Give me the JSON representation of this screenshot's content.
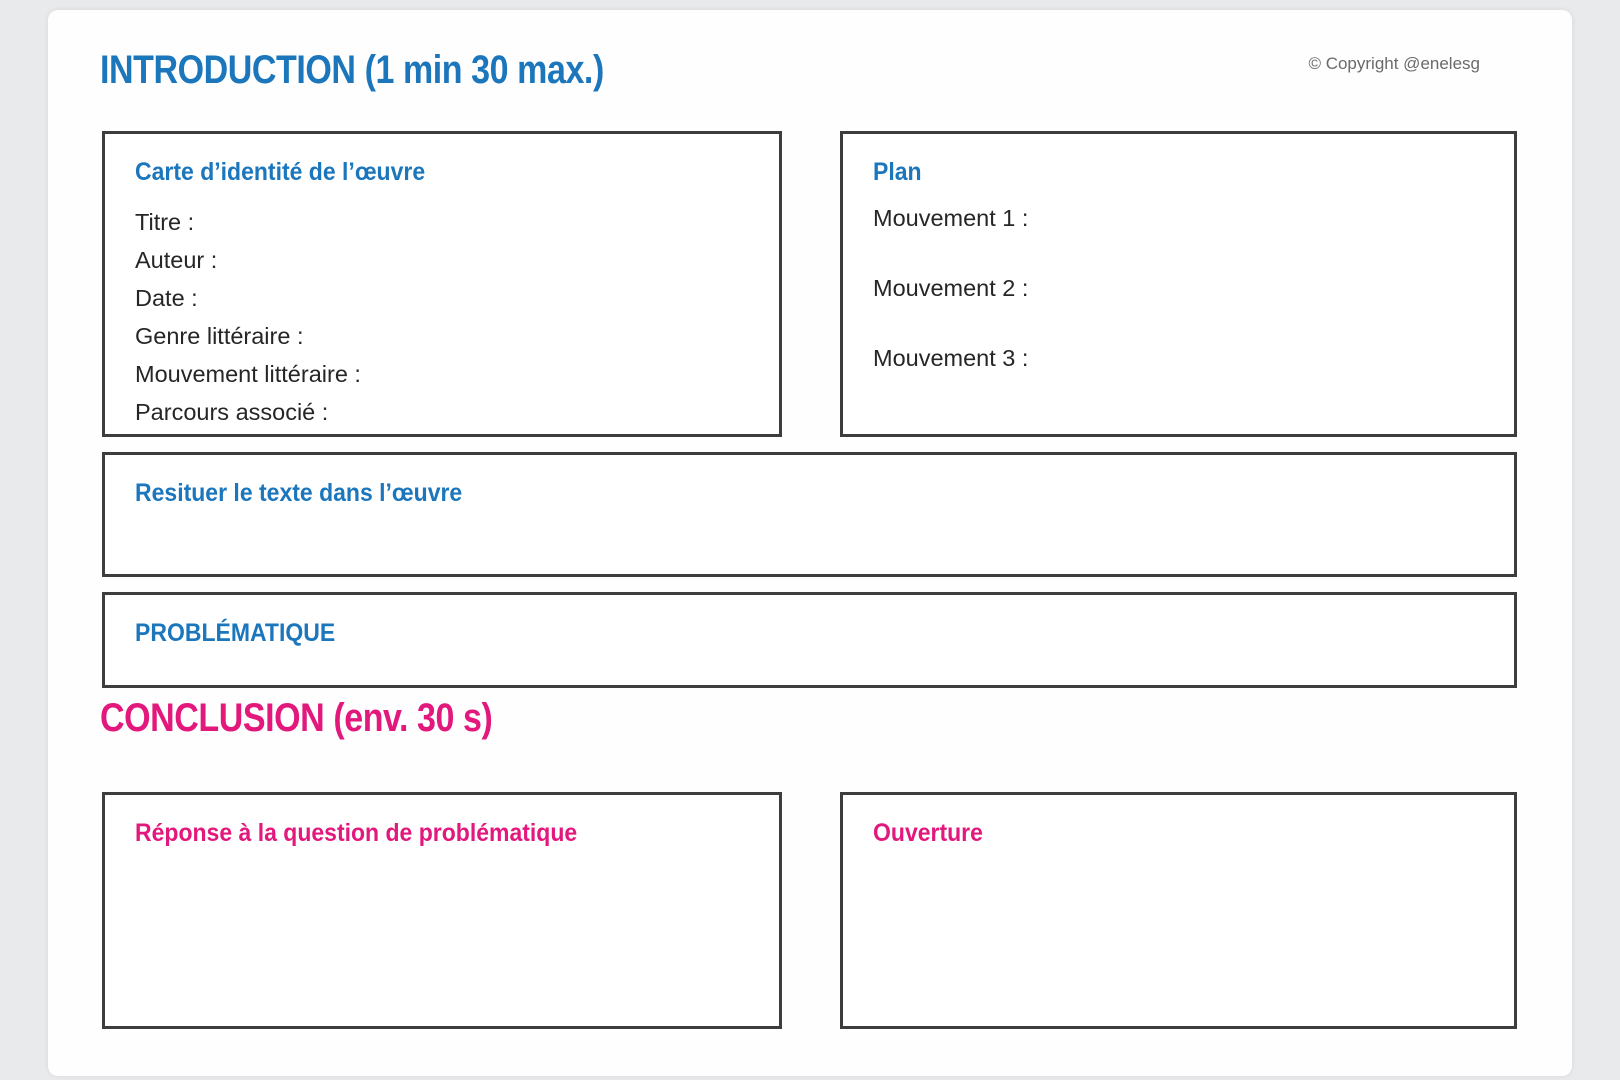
{
  "page": {
    "copyright": "© Copyright @enelesg",
    "colors": {
      "blue": "#1b76bc",
      "pink": "#e2187d"
    }
  },
  "introduction": {
    "heading": "INTRODUCTION (1 min 30 max.)",
    "identity_card": {
      "title": "Carte d’identité de l’œuvre",
      "fields": [
        "Titre :",
        "Auteur :",
        "Date :",
        "Genre littéraire :",
        "Mouvement littéraire :",
        "Parcours associé :"
      ]
    },
    "plan": {
      "title": "Plan",
      "fields": [
        "Mouvement 1 :",
        "Mouvement 2 :",
        "Mouvement 3 :"
      ]
    },
    "resituer": {
      "title": "Resituer le texte dans l’œuvre"
    },
    "problematique": {
      "title": "PROBLÉMATIQUE"
    }
  },
  "conclusion": {
    "heading": "CONCLUSION (env. 30 s)",
    "reponse": {
      "title": "Réponse à la question de problématique"
    },
    "ouverture": {
      "title": "Ouverture"
    }
  }
}
